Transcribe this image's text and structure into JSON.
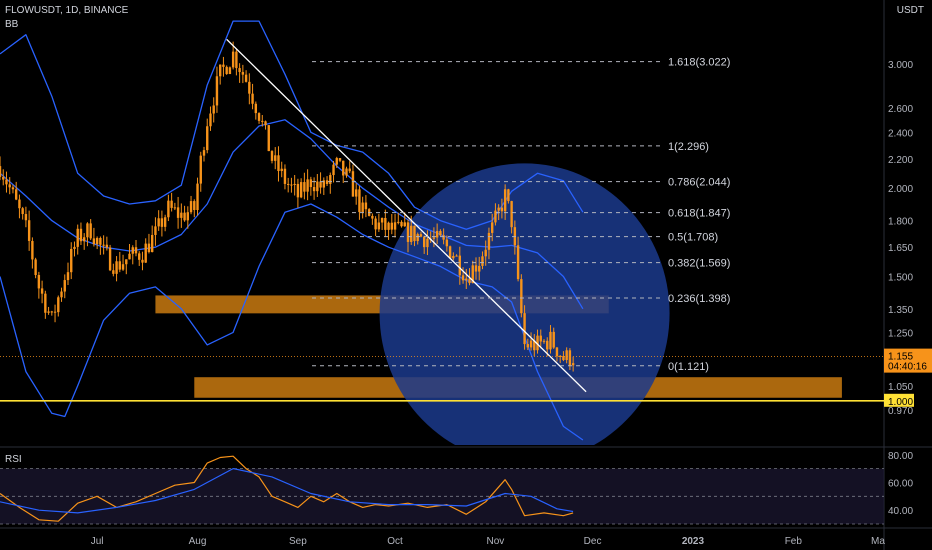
{
  "header": {
    "symbol_line": "FLOWUSDT, 1D, BINANCE",
    "indicator": "BB"
  },
  "axis": {
    "currency": "USDT",
    "price_ticks": [
      "3.000",
      "2.600",
      "2.400",
      "2.200",
      "2.000",
      "1.800",
      "1.650",
      "1.500",
      "1.350",
      "1.250",
      "1.050",
      "0.970"
    ],
    "rsi_ticks": [
      "80.00",
      "60.00",
      "40.00"
    ],
    "time_labels": [
      "Jul",
      "Aug",
      "Sep",
      "Oct",
      "Nov",
      "Dec",
      "2023",
      "Feb",
      "Ma"
    ]
  },
  "price_badge": {
    "price": "1.155",
    "countdown": "04:40:16"
  },
  "level_badge": "1.000",
  "rsi_label": "RSI",
  "colors": {
    "bg": "#000000",
    "candle": "#f7931a",
    "bb": "#2962ff",
    "fib": "#b2b5be",
    "trend": "#ffffff",
    "zone": "#c97a10",
    "circle": "#1b3a8c",
    "level": "#ffe135",
    "rsi": "#f7931a",
    "rsi_ma": "#2962ff"
  },
  "chart_data": {
    "type": "candlestick",
    "symbol": "FLOWUSDT",
    "interval": "1D",
    "exchange": "BINANCE",
    "y_scale": "log",
    "ylim": [
      0.88,
      3.6
    ],
    "x_range": [
      "2022-06-01",
      "2023-03-01"
    ],
    "fib_levels": [
      {
        "label": "1.618(3.022)",
        "value": 3.022
      },
      {
        "label": "1(2.296)",
        "value": 2.296
      },
      {
        "label": "0.786(2.044)",
        "value": 2.044
      },
      {
        "label": "0.618(1.847)",
        "value": 1.847
      },
      {
        "label": "0.5(1.708)",
        "value": 1.708
      },
      {
        "label": "0.382(1.569)",
        "value": 1.569
      },
      {
        "label": "0.236(1.398)",
        "value": 1.398
      },
      {
        "label": "0(1.121)",
        "value": 1.121
      }
    ],
    "zones": [
      {
        "from": "2022-07-19",
        "to": "2022-12-06",
        "low": 1.33,
        "high": 1.41
      },
      {
        "from": "2022-07-31",
        "to": "2023-02-16",
        "low": 1.01,
        "high": 1.08
      }
    ],
    "horizontal_level": 1.0,
    "trendline": {
      "from": [
        "2022-08-10",
        3.25
      ],
      "to": [
        "2022-11-29",
        1.03
      ]
    },
    "last_price": 1.155,
    "price_series": [
      [
        "2022-06-01",
        2.15
      ],
      [
        "2022-06-05",
        1.95
      ],
      [
        "2022-06-09",
        1.75
      ],
      [
        "2022-06-13",
        1.45
      ],
      [
        "2022-06-17",
        1.3
      ],
      [
        "2022-06-21",
        1.5
      ],
      [
        "2022-06-25",
        1.7
      ],
      [
        "2022-06-29",
        1.75
      ],
      [
        "2022-07-03",
        1.62
      ],
      [
        "2022-07-07",
        1.55
      ],
      [
        "2022-07-11",
        1.6
      ],
      [
        "2022-07-15",
        1.62
      ],
      [
        "2022-07-19",
        1.72
      ],
      [
        "2022-07-23",
        1.87
      ],
      [
        "2022-07-27",
        1.83
      ],
      [
        "2022-07-31",
        1.87
      ],
      [
        "2022-08-04",
        2.5
      ],
      [
        "2022-08-08",
        2.9
      ],
      [
        "2022-08-12",
        3.1
      ],
      [
        "2022-08-16",
        2.85
      ],
      [
        "2022-08-20",
        2.55
      ],
      [
        "2022-08-24",
        2.2
      ],
      [
        "2022-08-28",
        2.05
      ],
      [
        "2022-09-01",
        1.95
      ],
      [
        "2022-09-05",
        2.05
      ],
      [
        "2022-09-09",
        2.0
      ],
      [
        "2022-09-13",
        2.15
      ],
      [
        "2022-09-17",
        2.05
      ],
      [
        "2022-09-21",
        1.85
      ],
      [
        "2022-09-25",
        1.78
      ],
      [
        "2022-09-29",
        1.75
      ],
      [
        "2022-10-03",
        1.74
      ],
      [
        "2022-10-07",
        1.72
      ],
      [
        "2022-10-11",
        1.7
      ],
      [
        "2022-10-15",
        1.68
      ],
      [
        "2022-10-19",
        1.62
      ],
      [
        "2022-10-23",
        1.5
      ],
      [
        "2022-10-27",
        1.58
      ],
      [
        "2022-10-31",
        1.75
      ],
      [
        "2022-11-04",
        1.95
      ],
      [
        "2022-11-06",
        1.8
      ],
      [
        "2022-11-08",
        1.45
      ],
      [
        "2022-11-10",
        1.2
      ],
      [
        "2022-11-14",
        1.2
      ],
      [
        "2022-11-18",
        1.22
      ],
      [
        "2022-11-22",
        1.15
      ],
      [
        "2022-11-25",
        1.155
      ]
    ],
    "bb_upper": [
      [
        "2022-06-01",
        3.1
      ],
      [
        "2022-06-09",
        3.3
      ],
      [
        "2022-06-17",
        2.7
      ],
      [
        "2022-06-25",
        2.1
      ],
      [
        "2022-07-03",
        1.95
      ],
      [
        "2022-07-11",
        1.9
      ],
      [
        "2022-07-19",
        1.92
      ],
      [
        "2022-07-27",
        2.02
      ],
      [
        "2022-08-04",
        2.8
      ],
      [
        "2022-08-12",
        3.45
      ],
      [
        "2022-08-20",
        3.45
      ],
      [
        "2022-08-28",
        2.9
      ],
      [
        "2022-09-05",
        2.4
      ],
      [
        "2022-09-13",
        2.3
      ],
      [
        "2022-09-21",
        2.25
      ],
      [
        "2022-09-29",
        2.1
      ],
      [
        "2022-10-07",
        1.88
      ],
      [
        "2022-10-15",
        1.8
      ],
      [
        "2022-10-23",
        1.75
      ],
      [
        "2022-10-31",
        1.8
      ],
      [
        "2022-11-06",
        1.98
      ],
      [
        "2022-11-14",
        2.1
      ],
      [
        "2022-11-22",
        2.05
      ],
      [
        "2022-11-28",
        1.85
      ]
    ],
    "bb_basis": [
      [
        "2022-06-01",
        2.1
      ],
      [
        "2022-06-09",
        1.95
      ],
      [
        "2022-06-17",
        1.8
      ],
      [
        "2022-06-25",
        1.7
      ],
      [
        "2022-07-03",
        1.65
      ],
      [
        "2022-07-11",
        1.63
      ],
      [
        "2022-07-19",
        1.65
      ],
      [
        "2022-07-27",
        1.72
      ],
      [
        "2022-08-04",
        1.9
      ],
      [
        "2022-08-12",
        2.25
      ],
      [
        "2022-08-20",
        2.45
      ],
      [
        "2022-08-28",
        2.5
      ],
      [
        "2022-09-05",
        2.35
      ],
      [
        "2022-09-13",
        2.15
      ],
      [
        "2022-09-21",
        2.0
      ],
      [
        "2022-09-29",
        1.88
      ],
      [
        "2022-10-07",
        1.78
      ],
      [
        "2022-10-15",
        1.72
      ],
      [
        "2022-10-23",
        1.66
      ],
      [
        "2022-10-31",
        1.65
      ],
      [
        "2022-11-06",
        1.66
      ],
      [
        "2022-11-14",
        1.62
      ],
      [
        "2022-11-22",
        1.5
      ],
      [
        "2022-11-28",
        1.35
      ]
    ],
    "bb_lower": [
      [
        "2022-06-01",
        1.5
      ],
      [
        "2022-06-09",
        1.1
      ],
      [
        "2022-06-17",
        0.96
      ],
      [
        "2022-06-21",
        0.95
      ],
      [
        "2022-06-25",
        1.05
      ],
      [
        "2022-07-03",
        1.3
      ],
      [
        "2022-07-11",
        1.42
      ],
      [
        "2022-07-19",
        1.45
      ],
      [
        "2022-07-27",
        1.35
      ],
      [
        "2022-08-04",
        1.2
      ],
      [
        "2022-08-12",
        1.25
      ],
      [
        "2022-08-20",
        1.55
      ],
      [
        "2022-08-28",
        1.85
      ],
      [
        "2022-09-05",
        1.9
      ],
      [
        "2022-09-13",
        1.82
      ],
      [
        "2022-09-21",
        1.72
      ],
      [
        "2022-09-29",
        1.65
      ],
      [
        "2022-10-07",
        1.6
      ],
      [
        "2022-10-15",
        1.55
      ],
      [
        "2022-10-23",
        1.48
      ],
      [
        "2022-10-31",
        1.45
      ],
      [
        "2022-11-06",
        1.38
      ],
      [
        "2022-11-14",
        1.1
      ],
      [
        "2022-11-22",
        0.92
      ],
      [
        "2022-11-28",
        0.88
      ]
    ],
    "rsi": {
      "ylim": [
        30,
        82
      ],
      "levels": [
        70,
        50,
        30
      ],
      "series": [
        [
          "2022-06-01",
          52
        ],
        [
          "2022-06-07",
          42
        ],
        [
          "2022-06-13",
          33
        ],
        [
          "2022-06-19",
          32
        ],
        [
          "2022-06-25",
          45
        ],
        [
          "2022-07-01",
          50
        ],
        [
          "2022-07-07",
          42
        ],
        [
          "2022-07-13",
          46
        ],
        [
          "2022-07-19",
          52
        ],
        [
          "2022-07-25",
          58
        ],
        [
          "2022-07-31",
          60
        ],
        [
          "2022-08-04",
          74
        ],
        [
          "2022-08-08",
          78
        ],
        [
          "2022-08-12",
          79
        ],
        [
          "2022-08-16",
          70
        ],
        [
          "2022-08-20",
          64
        ],
        [
          "2022-08-24",
          50
        ],
        [
          "2022-08-28",
          46
        ],
        [
          "2022-09-01",
          42
        ],
        [
          "2022-09-05",
          50
        ],
        [
          "2022-09-09",
          46
        ],
        [
          "2022-09-13",
          52
        ],
        [
          "2022-09-17",
          46
        ],
        [
          "2022-09-21",
          42
        ],
        [
          "2022-09-25",
          44
        ],
        [
          "2022-09-29",
          43
        ],
        [
          "2022-10-05",
          45
        ],
        [
          "2022-10-11",
          42
        ],
        [
          "2022-10-17",
          44
        ],
        [
          "2022-10-23",
          37
        ],
        [
          "2022-10-29",
          46
        ],
        [
          "2022-11-04",
          62
        ],
        [
          "2022-11-06",
          55
        ],
        [
          "2022-11-10",
          36
        ],
        [
          "2022-11-16",
          38
        ],
        [
          "2022-11-22",
          36
        ],
        [
          "2022-11-25",
          38
        ]
      ],
      "ma": [
        [
          "2022-06-01",
          46
        ],
        [
          "2022-06-13",
          40
        ],
        [
          "2022-06-25",
          38
        ],
        [
          "2022-07-07",
          42
        ],
        [
          "2022-07-19",
          47
        ],
        [
          "2022-07-31",
          55
        ],
        [
          "2022-08-12",
          70
        ],
        [
          "2022-08-24",
          64
        ],
        [
          "2022-09-05",
          52
        ],
        [
          "2022-09-17",
          46
        ],
        [
          "2022-09-29",
          44
        ],
        [
          "2022-10-11",
          44
        ],
        [
          "2022-10-23",
          43
        ],
        [
          "2022-11-04",
          52
        ],
        [
          "2022-11-12",
          50
        ],
        [
          "2022-11-20",
          41
        ],
        [
          "2022-11-25",
          39
        ]
      ]
    }
  }
}
